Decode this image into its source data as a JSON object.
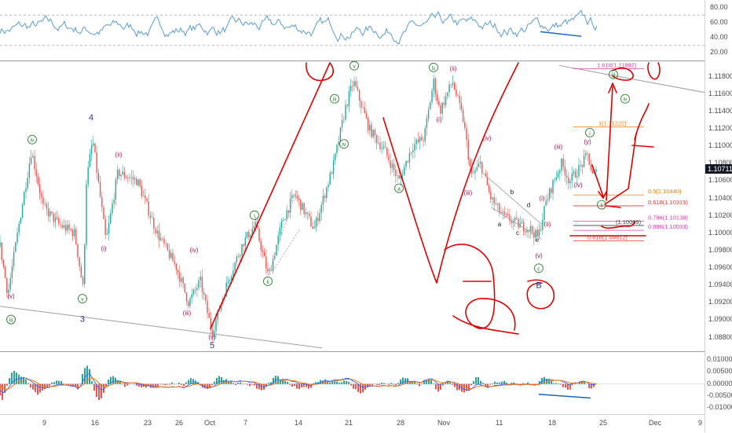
{
  "chart_data": {
    "type": "line",
    "title": "",
    "price": {
      "yticks": [
        1.088,
        1.09,
        1.092,
        1.094,
        1.096,
        1.098,
        1.1,
        1.102,
        1.104,
        1.106,
        1.108,
        1.11,
        1.112,
        1.114,
        1.116,
        1.118
      ],
      "ytick_labels": [
        "1.08800",
        "1.09000",
        "1.09200",
        "1.09400",
        "1.09600",
        "1.09800",
        "1.10000",
        "1.10200",
        "1.10400",
        "1.10600",
        "1.10800",
        "1.11000",
        "1.11200",
        "1.11400",
        "1.11600",
        "1.11800"
      ],
      "ylim": [
        1.0866,
        1.1196
      ],
      "last_price": "1.10711",
      "waypoints": [
        {
          "x": 0,
          "y": 1.0985
        },
        {
          "x": 10,
          "y": 1.093
        },
        {
          "x": 25,
          "y": 1.1015
        },
        {
          "x": 40,
          "y": 1.1095
        },
        {
          "x": 55,
          "y": 1.103
        },
        {
          "x": 75,
          "y": 1.101
        },
        {
          "x": 95,
          "y": 1.1
        },
        {
          "x": 106,
          "y": 1.0935
        },
        {
          "x": 110,
          "y": 1.106
        },
        {
          "x": 118,
          "y": 1.1108
        },
        {
          "x": 135,
          "y": 1.099
        },
        {
          "x": 150,
          "y": 1.107
        },
        {
          "x": 175,
          "y": 1.106
        },
        {
          "x": 200,
          "y": 1.1
        },
        {
          "x": 225,
          "y": 1.096
        },
        {
          "x": 240,
          "y": 1.092
        },
        {
          "x": 255,
          "y": 1.0945
        },
        {
          "x": 270,
          "y": 1.0885
        },
        {
          "x": 290,
          "y": 1.0945
        },
        {
          "x": 310,
          "y": 1.099
        },
        {
          "x": 325,
          "y": 1.101
        },
        {
          "x": 342,
          "y": 1.095
        },
        {
          "x": 360,
          "y": 1.1015
        },
        {
          "x": 375,
          "y": 1.1045
        },
        {
          "x": 400,
          "y": 1.1005
        },
        {
          "x": 425,
          "y": 1.108
        },
        {
          "x": 440,
          "y": 1.1145
        },
        {
          "x": 450,
          "y": 1.1175
        },
        {
          "x": 470,
          "y": 1.112
        },
        {
          "x": 490,
          "y": 1.1095
        },
        {
          "x": 508,
          "y": 1.106
        },
        {
          "x": 525,
          "y": 1.11
        },
        {
          "x": 540,
          "y": 1.111
        },
        {
          "x": 552,
          "y": 1.1175
        },
        {
          "x": 560,
          "y": 1.114
        },
        {
          "x": 576,
          "y": 1.1175
        },
        {
          "x": 590,
          "y": 1.113
        },
        {
          "x": 600,
          "y": 1.1065
        },
        {
          "x": 612,
          "y": 1.108
        },
        {
          "x": 625,
          "y": 1.104
        },
        {
          "x": 640,
          "y": 1.102
        },
        {
          "x": 660,
          "y": 1.101
        },
        {
          "x": 675,
          "y": 1.1005
        },
        {
          "x": 685,
          "y": 1.0995
        },
        {
          "x": 695,
          "y": 1.1035
        },
        {
          "x": 705,
          "y": 1.106
        },
        {
          "x": 715,
          "y": 1.108
        },
        {
          "x": 725,
          "y": 1.106
        },
        {
          "x": 738,
          "y": 1.1075
        },
        {
          "x": 748,
          "y": 1.109
        },
        {
          "x": 755,
          "y": 1.1065
        },
        {
          "x": 760,
          "y": 1.1071
        }
      ],
      "fib_levels": [
        {
          "label": "1.618(1.11892)",
          "value": 1.11892,
          "color": "#e040a0"
        },
        {
          "label": "1(1.11222)",
          "value": 1.11222,
          "color": "#f57c00"
        },
        {
          "label": "0.5(1.10440)",
          "value": 1.1044,
          "color": "#f57c00"
        },
        {
          "label": "0.618(1.10315)",
          "value": 1.10315,
          "color": "#e53935"
        },
        {
          "label": "0.786(1.10138)",
          "value": 1.10138,
          "color": "#e040a0"
        },
        {
          "label": "0.886(1.10033)",
          "value": 1.10033,
          "color": "#e040a0"
        },
        {
          "label": "(1.10089)",
          "value": 1.10089,
          "color": "#424242"
        },
        {
          "label": "0.618(1.09912)",
          "value": 1.09912,
          "color": "#e53935"
        }
      ],
      "wave_labels": [
        {
          "text": "(v)",
          "x": 14,
          "y": 1.0925,
          "color": "#ad1457",
          "circled": false
        },
        {
          "text": "iii",
          "x": 14,
          "y": 1.0898,
          "color": "#2e7d32",
          "circled": true
        },
        {
          "text": "iv",
          "x": 41,
          "y": 1.1105,
          "color": "#2e7d32",
          "circled": true
        },
        {
          "text": "(i)",
          "x": 132,
          "y": 1.098,
          "color": "#ad1457",
          "circled": false
        },
        {
          "text": "(ii)",
          "x": 151,
          "y": 1.1088,
          "color": "#ad1457",
          "circled": false
        },
        {
          "text": "v",
          "x": 105,
          "y": 1.0922,
          "color": "#2e7d32",
          "circled": true
        },
        {
          "text": "4",
          "x": 116,
          "y": 1.113,
          "color": "#283593",
          "circled": false
        },
        {
          "text": "3",
          "x": 105,
          "y": 1.0898,
          "color": "#283593",
          "circled": false
        },
        {
          "text": "(iii)",
          "x": 238,
          "y": 1.0906,
          "color": "#ad1457",
          "circled": false
        },
        {
          "text": "(iv)",
          "x": 247,
          "y": 1.0978,
          "color": "#ad1457",
          "circled": false
        },
        {
          "text": "(v)",
          "x": 270,
          "y": 1.0878,
          "color": "#ad1457",
          "circled": false
        },
        {
          "text": "5",
          "x": 270,
          "y": 1.0868,
          "color": "#283593",
          "circled": false
        },
        {
          "text": "i",
          "x": 324,
          "y": 1.1018,
          "color": "#2e7d32",
          "circled": true
        },
        {
          "text": "ii",
          "x": 341,
          "y": 1.0942,
          "color": "#2e7d32",
          "circled": true
        },
        {
          "text": "iii",
          "x": 426,
          "y": 1.1152,
          "color": "#2e7d32",
          "circled": true
        },
        {
          "text": "iv",
          "x": 438,
          "y": 1.11,
          "color": "#2e7d32",
          "circled": true
        },
        {
          "text": "v",
          "x": 451,
          "y": 1.119,
          "color": "#2e7d32",
          "circled": true
        },
        {
          "text": "a",
          "x": 508,
          "y": 1.1049,
          "color": "#2e7d32",
          "circled": true
        },
        {
          "text": "b",
          "x": 552,
          "y": 1.1188,
          "color": "#2e7d32",
          "circled": true
        },
        {
          "text": "(ii)",
          "x": 577,
          "y": 1.1187,
          "color": "#ad1457",
          "circled": false
        },
        {
          "text": "(i)",
          "x": 559,
          "y": 1.1128,
          "color": "#ad1457",
          "circled": false
        },
        {
          "text": "(iv)",
          "x": 620,
          "y": 1.1107,
          "color": "#ad1457",
          "circled": false
        },
        {
          "text": "(iii)",
          "x": 596,
          "y": 1.1044,
          "color": "#ad1457",
          "circled": false
        },
        {
          "text": "b",
          "x": 652,
          "y": 1.1045,
          "color": "#131722",
          "circled": false
        },
        {
          "text": "d",
          "x": 673,
          "y": 1.103,
          "color": "#131722",
          "circled": false
        },
        {
          "text": "a",
          "x": 636,
          "y": 1.1008,
          "color": "#131722",
          "circled": false
        },
        {
          "text": "c",
          "x": 659,
          "y": 1.0998,
          "color": "#131722",
          "circled": false
        },
        {
          "text": "e",
          "x": 684,
          "y": 1.099,
          "color": "#131722",
          "circled": false
        },
        {
          "text": "(v)",
          "x": 686,
          "y": 1.0972,
          "color": "#ad1457",
          "circled": false
        },
        {
          "text": "c",
          "x": 686,
          "y": 1.0957,
          "color": "#2e7d32",
          "circled": true
        },
        {
          "text": "B",
          "x": 686,
          "y": 1.0937,
          "color": "#283593",
          "circled": false
        },
        {
          "text": "(i)",
          "x": 690,
          "y": 1.1038,
          "color": "#ad1457",
          "circled": false
        },
        {
          "text": "(ii)",
          "x": 697,
          "y": 1.1008,
          "color": "#ad1457",
          "circled": false
        },
        {
          "text": "(iii)",
          "x": 711,
          "y": 1.1097,
          "color": "#ad1457",
          "circled": false
        },
        {
          "text": "(iv)",
          "x": 736,
          "y": 1.1053,
          "color": "#ad1457",
          "circled": false
        },
        {
          "text": "(y)",
          "x": 748,
          "y": 1.1103,
          "color": "#ad1457",
          "circled": false
        },
        {
          "text": "i",
          "x": 751,
          "y": 1.1113,
          "color": "#2e7d32",
          "circled": true
        },
        {
          "text": "ii",
          "x": 766,
          "y": 1.103,
          "color": "#2e7d32",
          "circled": true
        },
        {
          "text": "iii",
          "x": 781,
          "y": 1.118,
          "color": "#2e7d32",
          "circled": true
        },
        {
          "text": "iv",
          "x": 796,
          "y": 1.1152,
          "color": "#2e7d32",
          "circled": true
        }
      ]
    },
    "rsi": {
      "yticks": [
        20,
        40,
        60,
        80
      ],
      "ytick_labels": [
        "20.00",
        "40.00",
        "60.00",
        "80.00"
      ],
      "ylim": [
        12,
        88
      ],
      "levels": [
        30,
        70
      ]
    },
    "macd": {
      "yticks": [
        0.01,
        0.005,
        0,
        -0.005,
        -0.01
      ],
      "ytick_labels": [
        "0.01000",
        "0.00500",
        "0.00000",
        "-0.00500",
        "-0.01000"
      ],
      "ylim": [
        -0.0118,
        0.0118
      ]
    },
    "x_axis": {
      "ticks": [
        {
          "label": "9",
          "x": 60
        },
        {
          "label": "16",
          "x": 122
        },
        {
          "label": "23",
          "x": 189
        },
        {
          "label": "26",
          "x": 229
        },
        {
          "label": "Oct",
          "x": 266
        },
        {
          "label": "7",
          "x": 316
        },
        {
          "label": "14",
          "x": 381
        },
        {
          "label": "21",
          "x": 445
        },
        {
          "label": "28",
          "x": 511
        },
        {
          "label": "Nov",
          "x": 563
        },
        {
          "label": "11",
          "x": 637
        },
        {
          "label": "18",
          "x": 704
        },
        {
          "label": "25",
          "x": 769
        },
        {
          "label": "Dec",
          "x": 832
        },
        {
          "label": "9",
          "x": 895
        }
      ]
    },
    "colors": {
      "up": "#26a69a",
      "down": "#ef5350",
      "rsi": "#5b9bd5",
      "macd": "#2962ff",
      "signal": "#ff6d00",
      "annotation": "#e00000",
      "trend": "#9e9e9e"
    }
  }
}
